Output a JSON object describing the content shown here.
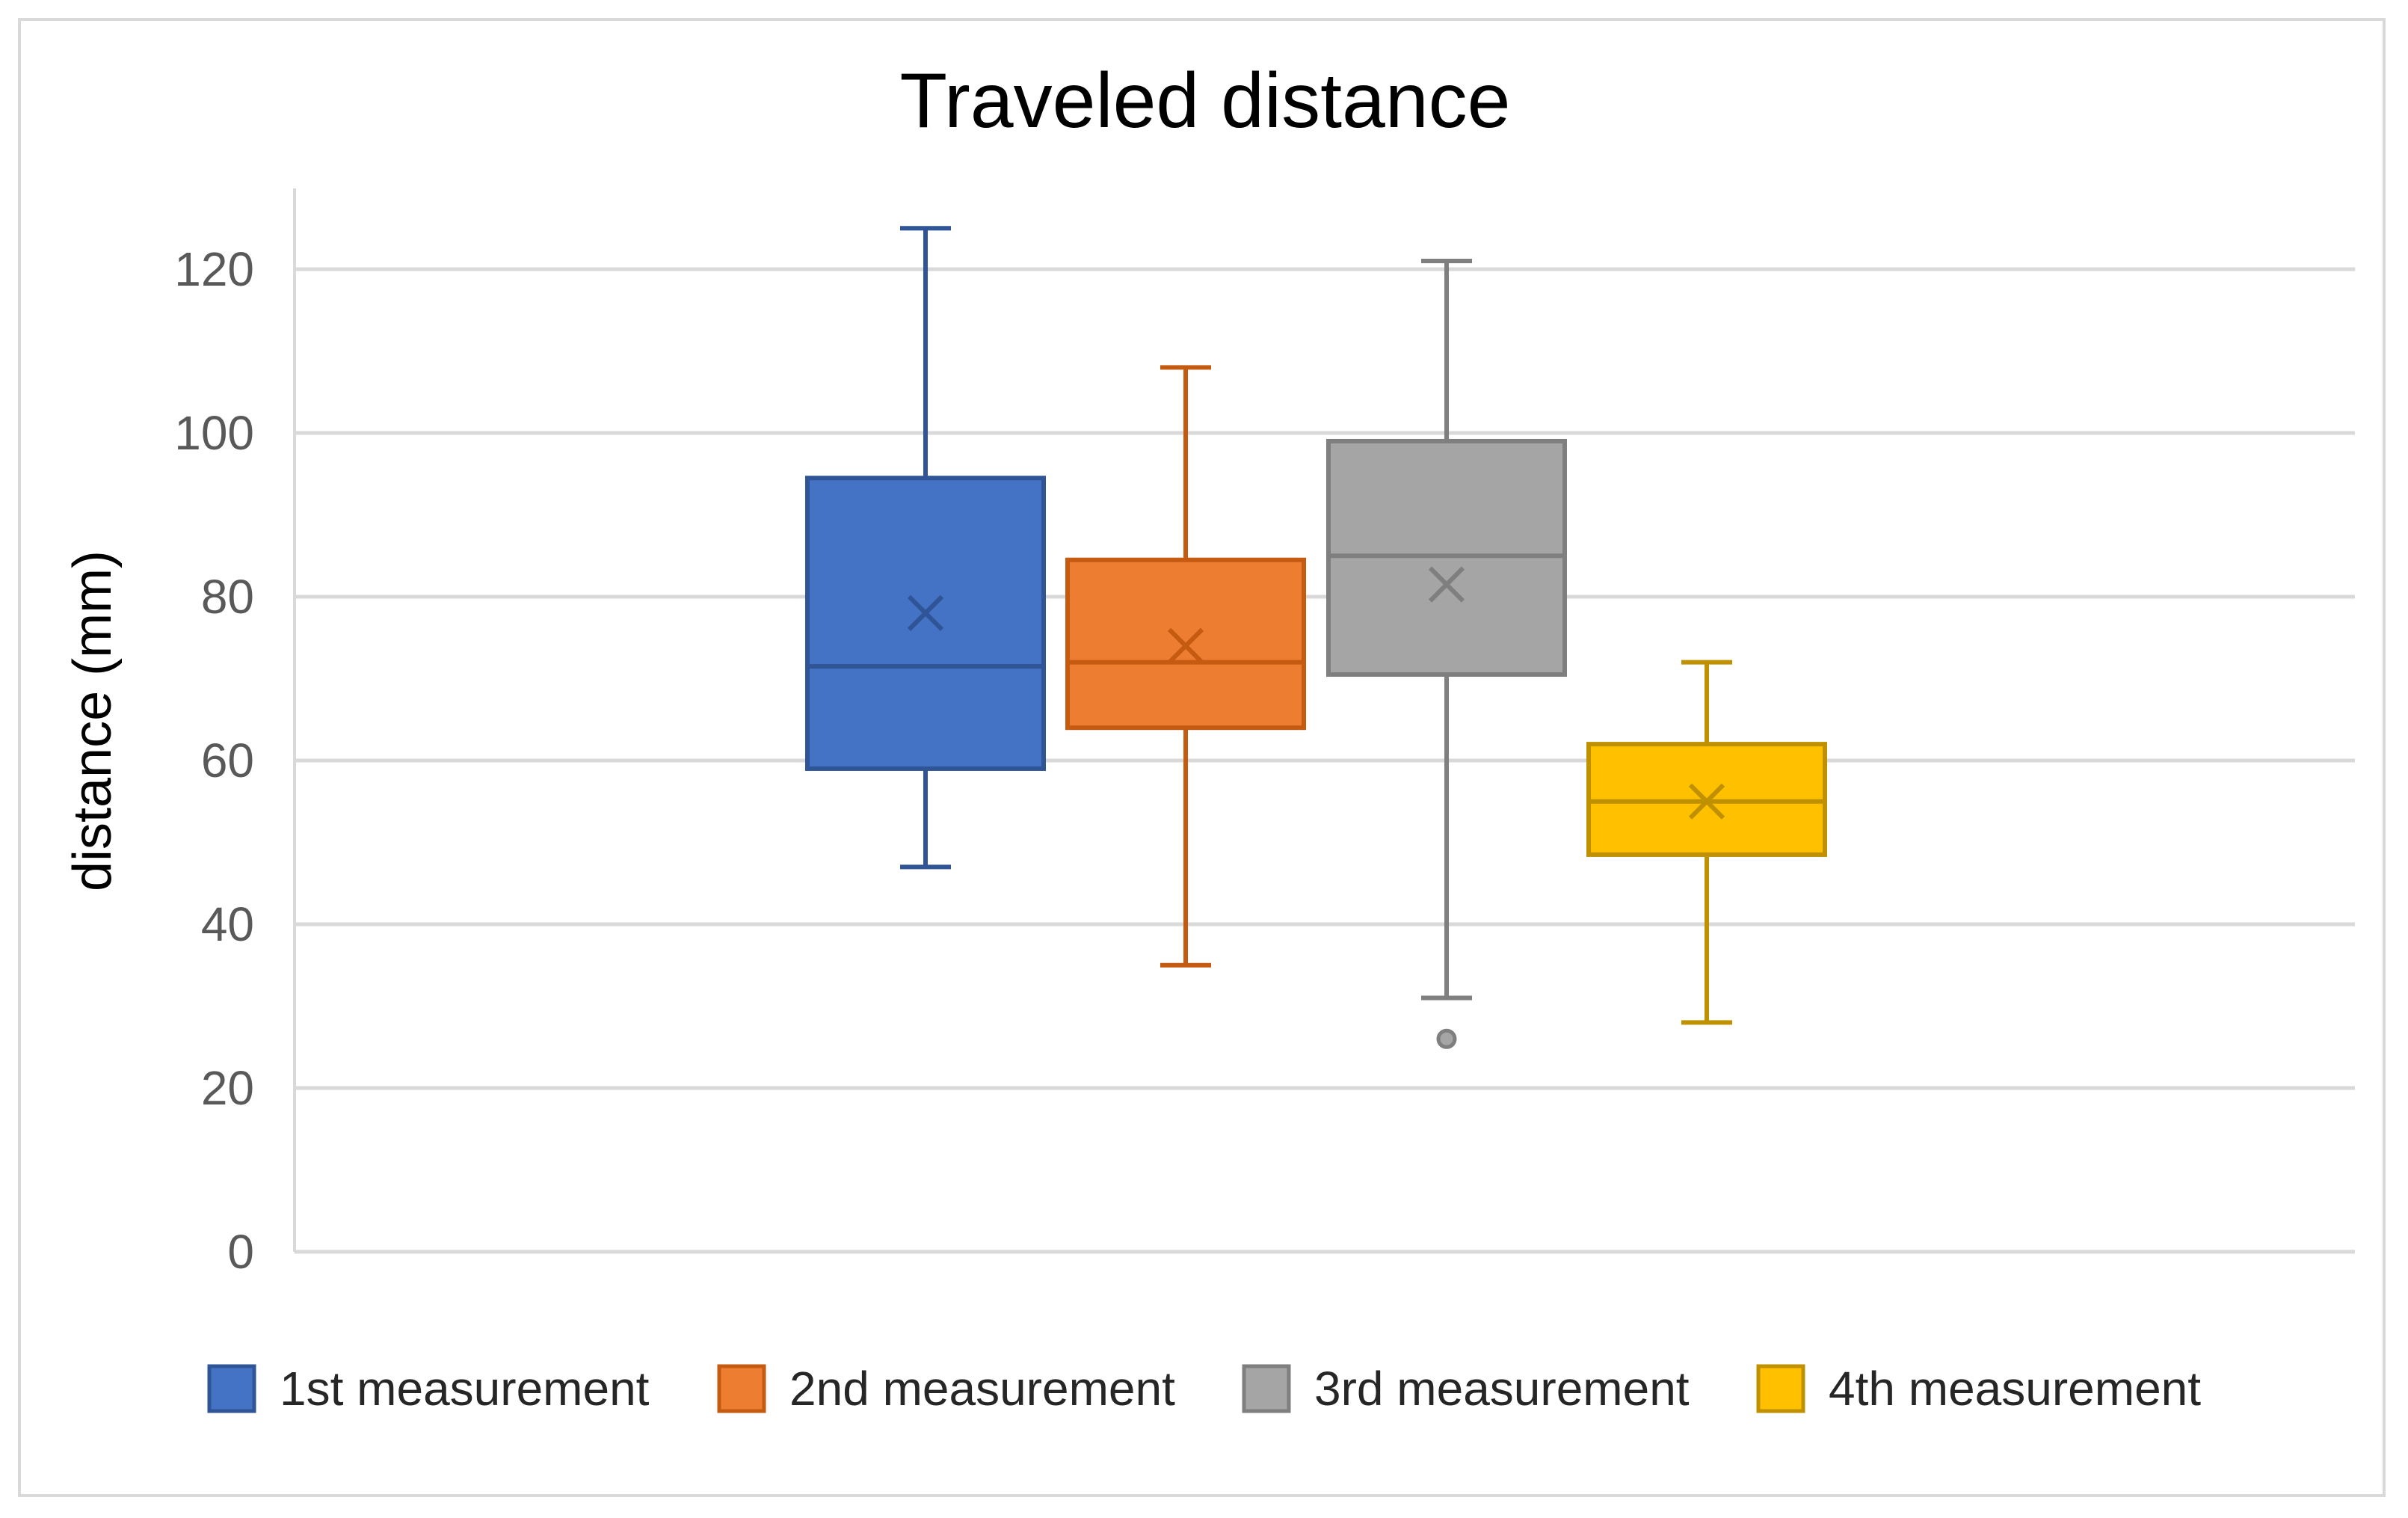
{
  "chart_data": {
    "type": "box",
    "title": "Traveled distance",
    "xlabel": "",
    "ylabel": "distance (mm)",
    "ylim": [
      0,
      120
    ],
    "yticks": [
      0,
      20,
      40,
      60,
      80,
      100,
      120
    ],
    "grid": true,
    "legend_position": "bottom",
    "series": [
      {
        "name": "1st measurement",
        "color": "#4472c4",
        "edge_color": "#2f5597",
        "min": 47,
        "q1": 59,
        "median": 71.5,
        "q3": 94.5,
        "max": 125,
        "mean": 78,
        "outliers": []
      },
      {
        "name": "2nd measurement",
        "color": "#ed7d31",
        "edge_color": "#c55a11",
        "min": 35,
        "q1": 64,
        "median": 72,
        "q3": 84.5,
        "max": 108,
        "mean": 74,
        "outliers": []
      },
      {
        "name": "3rd measurement",
        "color": "#a5a5a5",
        "edge_color": "#7f7f7f",
        "min": 31,
        "q1": 70.5,
        "median": 85,
        "q3": 99,
        "max": 121,
        "mean": 81.5,
        "outliers": [
          26
        ]
      },
      {
        "name": "4th measurement",
        "color": "#ffc000",
        "edge_color": "#bf9000",
        "min": 28,
        "q1": 48.5,
        "median": 55,
        "q3": 62,
        "max": 72,
        "mean": 55,
        "outliers": []
      }
    ]
  }
}
